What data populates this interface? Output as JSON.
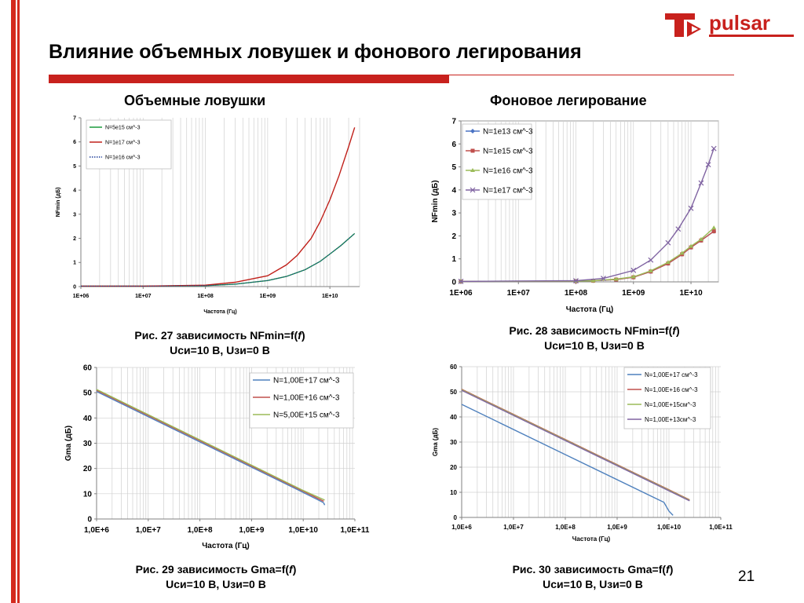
{
  "slide": {
    "title": "Влияние объемных ловушек и фонового легирования",
    "page_number": "21",
    "logo_text": "pulsar"
  },
  "headings": {
    "left": "Объемные ловушки",
    "right": "Фоновое легирование"
  },
  "captions": {
    "fig27": {
      "prefix": "Рис. 27 зависимость NFmin=f(",
      "var": "f",
      "suffix": ")",
      "line2": "Uси=10 В, Uзи=0 В"
    },
    "fig28": {
      "prefix": "Рис. 28 зависимость NFmin=f(",
      "var": "f",
      "suffix": ")",
      "line2": "Uси=10 В, Uзи=0 В"
    },
    "fig29": {
      "prefix": "Рис. 29 зависимость Gma=f(",
      "var": "f",
      "suffix": ")",
      "line2": "Uси=10 В, Uзи=0 В"
    },
    "fig30": {
      "prefix": "Рис. 30 зависимость Gma=f(",
      "var": "f",
      "suffix": ")",
      "line2": "Uси=10 В, Uзи=0 В"
    }
  },
  "colors": {
    "accent": "#c8211d"
  },
  "chart_data": [
    {
      "id": "fig27",
      "type": "line",
      "xscale": "log",
      "xlim": [
        1000000.0,
        30000000000.0
      ],
      "ylim": [
        0,
        7
      ],
      "xticks": [
        1000000.0,
        10000000.0,
        100000000.0,
        1000000000.0,
        10000000000.0
      ],
      "xtick_labels": [
        "1E+06",
        "1E+07",
        "1E+08",
        "1E+09",
        "1E+10"
      ],
      "yticks": [
        0,
        1,
        2,
        3,
        4,
        5,
        6,
        7
      ],
      "ytick_labels": [
        "0",
        "1",
        "2",
        "3",
        "4",
        "5",
        "6",
        "7"
      ],
      "xlabel": "Частота (Гц)",
      "ylabel": "NFmin (дБ)",
      "grid": "vertical-minor-log",
      "legend_position": "top-left",
      "series": [
        {
          "name": "N=5e15 см^-3",
          "color": "#1a9a3c",
          "style": "solid",
          "x": [
            1000000.0,
            10000000.0,
            100000000.0,
            300000000.0,
            1000000000.0,
            2000000000.0,
            4000000000.0,
            7000000000.0,
            10000000000.0,
            15000000000.0,
            25000000000.0
          ],
          "y": [
            0.02,
            0.02,
            0.04,
            0.1,
            0.25,
            0.42,
            0.7,
            1.05,
            1.35,
            1.7,
            2.2
          ]
        },
        {
          "name": "N=1e17  см^-3",
          "color": "#c0201a",
          "style": "solid",
          "x": [
            1000000.0,
            10000000.0,
            100000000.0,
            300000000.0,
            1000000000.0,
            2000000000.0,
            3000000000.0,
            5000000000.0,
            7000000000.0,
            10000000000.0,
            14000000000.0,
            20000000000.0,
            25000000000.0
          ],
          "y": [
            0.02,
            0.02,
            0.06,
            0.18,
            0.45,
            0.9,
            1.3,
            2.0,
            2.7,
            3.6,
            4.6,
            5.8,
            6.6
          ]
        },
        {
          "name": "N=1e16  см^-3",
          "color": "#1f3f9a",
          "style": "dotted",
          "x": [
            1000000.0,
            10000000.0,
            100000000.0,
            300000000.0,
            1000000000.0,
            2000000000.0,
            4000000000.0,
            7000000000.0,
            10000000000.0,
            15000000000.0,
            25000000000.0
          ],
          "y": [
            0.02,
            0.02,
            0.04,
            0.1,
            0.25,
            0.42,
            0.7,
            1.05,
            1.35,
            1.7,
            2.2
          ]
        }
      ]
    },
    {
      "id": "fig28",
      "type": "line",
      "xscale": "log",
      "xlim": [
        1000000.0,
        30000000000.0
      ],
      "ylim": [
        0,
        7
      ],
      "xticks": [
        1000000.0,
        10000000.0,
        100000000.0,
        1000000000.0,
        10000000000.0
      ],
      "xtick_labels": [
        "1E+06",
        "1E+07",
        "1E+08",
        "1E+09",
        "1E+10"
      ],
      "yticks": [
        0,
        1,
        2,
        3,
        4,
        5,
        6,
        7
      ],
      "ytick_labels": [
        "0",
        "1",
        "2",
        "3",
        "4",
        "5",
        "6",
        "7"
      ],
      "xlabel": "Частота (Гц)",
      "ylabel": "NFmin (дБ)",
      "grid": "vertical-minor-log",
      "legend_position": "top-left",
      "series": [
        {
          "name": "N=1e13 см^-3",
          "color": "#4a73c4",
          "marker": "diamond",
          "x": [
            1000000.0,
            100000000.0,
            200000000.0,
            500000000.0,
            1000000000.0,
            2000000000.0,
            4000000000.0,
            7000000000.0,
            10000000000.0,
            15000000000.0,
            25000000000.0
          ],
          "y": [
            0.02,
            0.03,
            0.05,
            0.1,
            0.2,
            0.45,
            0.8,
            1.2,
            1.5,
            1.8,
            2.2
          ]
        },
        {
          "name": "N=1e15  см^-3",
          "color": "#c0504d",
          "marker": "square",
          "x": [
            1000000.0,
            100000000.0,
            200000000.0,
            500000000.0,
            1000000000.0,
            2000000000.0,
            4000000000.0,
            7000000000.0,
            10000000000.0,
            15000000000.0,
            25000000000.0
          ],
          "y": [
            0.02,
            0.03,
            0.05,
            0.1,
            0.2,
            0.45,
            0.8,
            1.2,
            1.5,
            1.8,
            2.2
          ]
        },
        {
          "name": "N=1e16  см^-3",
          "color": "#9bbb59",
          "marker": "triangle",
          "x": [
            1000000.0,
            100000000.0,
            200000000.0,
            500000000.0,
            1000000000.0,
            2000000000.0,
            4000000000.0,
            7000000000.0,
            10000000000.0,
            15000000000.0,
            25000000000.0
          ],
          "y": [
            0.02,
            0.03,
            0.05,
            0.12,
            0.22,
            0.48,
            0.85,
            1.25,
            1.55,
            1.85,
            2.35
          ]
        },
        {
          "name": "N=1e17  см^-3",
          "color": "#8064a2",
          "marker": "x",
          "x": [
            1000000.0,
            100000000.0,
            300000000.0,
            1000000000.0,
            2000000000.0,
            4000000000.0,
            6000000000.0,
            10000000000.0,
            15000000000.0,
            20000000000.0,
            25000000000.0
          ],
          "y": [
            0.02,
            0.05,
            0.15,
            0.5,
            0.95,
            1.7,
            2.3,
            3.2,
            4.3,
            5.1,
            5.8
          ]
        }
      ]
    },
    {
      "id": "fig29",
      "type": "line",
      "xscale": "log",
      "xlim": [
        1000000.0,
        100000000000.0
      ],
      "ylim": [
        0,
        60
      ],
      "xticks": [
        1000000.0,
        10000000.0,
        100000000.0,
        1000000000.0,
        10000000000.0,
        100000000000.0
      ],
      "xtick_labels": [
        "1,0E+6",
        "1,0E+7",
        "1,0E+8",
        "1,0E+9",
        "1,0E+10",
        "1,0E+11"
      ],
      "yticks": [
        0,
        10,
        20,
        30,
        40,
        50,
        60
      ],
      "ytick_labels": [
        "0",
        "10",
        "20",
        "30",
        "40",
        "50",
        "60"
      ],
      "xlabel": "Частота (Гц)",
      "ylabel": "Gma (дБ)",
      "grid": "both",
      "legend_position": "top-right",
      "series": [
        {
          "name": "N=1,00E+17 см^-3",
          "color": "#4f81bd",
          "x": [
            1000000.0,
            100000000.0,
            10000000000.0,
            23000000000.0,
            25000000000.0,
            26000000000.0
          ],
          "y": [
            50.5,
            30.5,
            10.5,
            6.8,
            6.3,
            5.5
          ]
        },
        {
          "name": "N=1,00E+16 см^-3",
          "color": "#c0504d",
          "x": [
            1000000.0,
            100000000.0,
            10000000000.0,
            25000000000.0
          ],
          "y": [
            51.0,
            31.0,
            11.0,
            7.0
          ]
        },
        {
          "name": "N=5,00E+15 см^-3",
          "color": "#9bbb59",
          "x": [
            1000000.0,
            100000000.0,
            10000000000.0,
            26000000000.0
          ],
          "y": [
            51.3,
            31.3,
            11.3,
            7.5
          ]
        }
      ]
    },
    {
      "id": "fig30",
      "type": "line",
      "xscale": "log",
      "xlim": [
        1000000.0,
        100000000000.0
      ],
      "ylim": [
        0,
        60
      ],
      "xticks": [
        1000000.0,
        10000000.0,
        100000000.0,
        1000000000.0,
        10000000000.0,
        100000000000.0
      ],
      "xtick_labels": [
        "1,0E+6",
        "1,0E+7",
        "1,0E+8",
        "1,0E+9",
        "1,0E+10",
        "1,0E+11"
      ],
      "yticks": [
        0,
        10,
        20,
        30,
        40,
        50,
        60
      ],
      "ytick_labels": [
        "0",
        "10",
        "20",
        "30",
        "40",
        "50",
        "60"
      ],
      "xlabel": "Частота (Гц)",
      "ylabel": "Gma (дБ)",
      "grid": "both",
      "legend_position": "top-right",
      "series": [
        {
          "name": "N=1,00E+17 см^-3",
          "color": "#4f81bd",
          "x": [
            1000000.0,
            100000000.0,
            8000000000.0,
            10000000000.0,
            12000000000.0
          ],
          "y": [
            45,
            25,
            6,
            2.5,
            0.8
          ]
        },
        {
          "name": "N=1,00E+16 см^-3",
          "color": "#c0504d",
          "x": [
            1000000.0,
            100000000.0,
            10000000000.0,
            25000000000.0
          ],
          "y": [
            51,
            31,
            11,
            7
          ]
        },
        {
          "name": "N=1,00E+15см^-3",
          "color": "#9bbb59",
          "x": [
            1000000.0,
            100000000.0,
            10000000000.0,
            25000000000.0
          ],
          "y": [
            50.8,
            30.8,
            10.8,
            6.8
          ]
        },
        {
          "name": "N=1,00E+13см^-3",
          "color": "#8064a2",
          "x": [
            1000000.0,
            100000000.0,
            10000000000.0,
            25000000000.0
          ],
          "y": [
            50.6,
            30.6,
            10.6,
            6.6
          ]
        }
      ]
    }
  ]
}
